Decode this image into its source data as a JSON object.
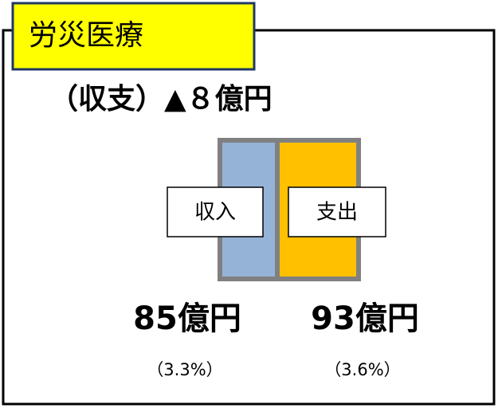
{
  "header": {
    "title": "労災医療"
  },
  "balance": "（収支）▲８億円",
  "income": {
    "label": "収入",
    "amount": "85億円",
    "share": "（3.3%）"
  },
  "expense": {
    "label": "支出",
    "amount": "93億円",
    "share": "（3.6%）"
  }
}
